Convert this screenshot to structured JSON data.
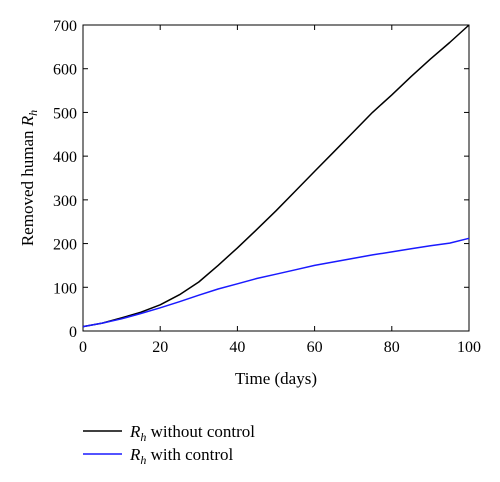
{
  "chart_data": {
    "type": "line",
    "title": "",
    "xlabel": "Time (days)",
    "ylabel": {
      "text": "Removed human ",
      "var": "R",
      "sub": "h"
    },
    "xlim": [
      0,
      100
    ],
    "ylim": [
      0,
      700
    ],
    "xticks": [
      0,
      20,
      40,
      60,
      80,
      100
    ],
    "yticks": [
      0,
      100,
      200,
      300,
      400,
      500,
      600,
      700
    ],
    "grid": false,
    "legend_position": "bottom-left, below plot",
    "series": [
      {
        "name": {
          "var": "R",
          "sub": "h",
          "text": " without control"
        },
        "color": "#000000",
        "x": [
          0,
          5,
          10,
          15,
          20,
          25,
          30,
          35,
          40,
          45,
          50,
          55,
          60,
          65,
          70,
          75,
          80,
          85,
          90,
          95,
          100
        ],
        "y": [
          10,
          18,
          30,
          43,
          60,
          83,
          112,
          150,
          190,
          232,
          275,
          320,
          365,
          410,
          455,
          500,
          540,
          582,
          622,
          660,
          700
        ]
      },
      {
        "name": {
          "var": "R",
          "sub": "h",
          "text": " with control"
        },
        "color": "#1a1aff",
        "x": [
          0,
          5,
          10,
          15,
          20,
          25,
          30,
          35,
          40,
          45,
          50,
          55,
          60,
          65,
          70,
          75,
          80,
          85,
          90,
          95,
          100
        ],
        "y": [
          10,
          18,
          28,
          40,
          53,
          67,
          82,
          96,
          108,
          120,
          130,
          140,
          150,
          158,
          166,
          174,
          181,
          188,
          195,
          201,
          212
        ]
      }
    ]
  }
}
